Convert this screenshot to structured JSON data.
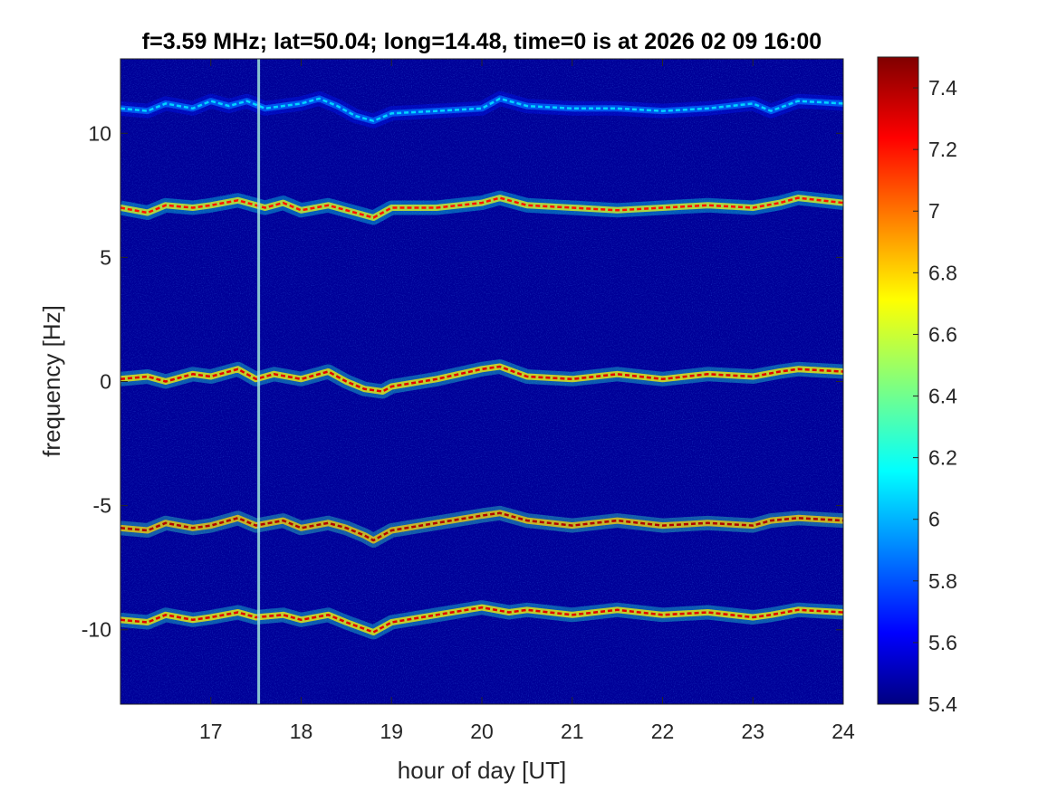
{
  "chart_data": {
    "type": "heatmap",
    "title": "f=3.59 MHz;  lat=50.04; long=14.48, time=0 is at 2026 02 09 16:00",
    "xlabel": "hour of day [UT]",
    "ylabel": "frequency [Hz]",
    "xlim": [
      16,
      24
    ],
    "ylim": [
      -13,
      13
    ],
    "xticks": [
      17,
      18,
      19,
      20,
      21,
      22,
      23,
      24
    ],
    "yticks": [
      -10,
      -5,
      0,
      5,
      10
    ],
    "colorbar": {
      "clim": [
        5.4,
        7.5
      ],
      "ticks": [
        5.4,
        5.6,
        5.8,
        6,
        6.2,
        6.4,
        6.6,
        6.8,
        7,
        7.2,
        7.4
      ],
      "colormap": "jet"
    },
    "background_level": 5.45,
    "vertical_interference_hour": 17.53,
    "traces": [
      {
        "x": [
          16.0,
          16.3,
          16.5,
          16.8,
          17.0,
          17.2,
          17.4,
          17.6,
          17.8,
          18.0,
          18.2,
          18.4,
          18.6,
          18.8,
          19.0,
          19.5,
          20.0,
          20.2,
          20.5,
          21.0,
          21.5,
          22.0,
          22.5,
          23.0,
          23.2,
          23.5,
          24.0
        ],
        "y": [
          11.0,
          10.9,
          11.2,
          11.0,
          11.3,
          11.1,
          11.3,
          11.0,
          11.1,
          11.2,
          11.4,
          11.1,
          10.7,
          10.5,
          10.8,
          10.9,
          11.0,
          11.4,
          11.1,
          11.0,
          11.0,
          10.9,
          11.0,
          11.2,
          10.9,
          11.3,
          11.2
        ],
        "level": 6.1
      },
      {
        "x": [
          16.0,
          16.3,
          16.5,
          16.8,
          17.0,
          17.3,
          17.6,
          17.8,
          18.0,
          18.3,
          18.6,
          18.8,
          19.0,
          19.5,
          20.0,
          20.2,
          20.5,
          21.0,
          21.5,
          22.0,
          22.5,
          23.0,
          23.3,
          23.5,
          24.0
        ],
        "y": [
          7.0,
          6.8,
          7.1,
          7.0,
          7.1,
          7.3,
          7.0,
          7.2,
          6.9,
          7.1,
          6.8,
          6.6,
          7.0,
          7.0,
          7.2,
          7.4,
          7.1,
          7.0,
          6.9,
          7.0,
          7.1,
          7.0,
          7.2,
          7.4,
          7.2
        ],
        "level": 7.2
      },
      {
        "x": [
          16.0,
          16.3,
          16.5,
          16.8,
          17.0,
          17.3,
          17.5,
          17.7,
          18.0,
          18.3,
          18.5,
          18.7,
          18.9,
          19.0,
          19.5,
          20.0,
          20.2,
          20.5,
          21.0,
          21.5,
          22.0,
          22.5,
          23.0,
          23.3,
          23.5,
          24.0
        ],
        "y": [
          0.1,
          0.2,
          0.0,
          0.3,
          0.2,
          0.5,
          0.1,
          0.3,
          0.1,
          0.4,
          0.0,
          -0.3,
          -0.4,
          -0.2,
          0.1,
          0.5,
          0.6,
          0.2,
          0.1,
          0.3,
          0.1,
          0.3,
          0.2,
          0.4,
          0.5,
          0.4
        ],
        "level": 7.3
      },
      {
        "x": [
          16.0,
          16.3,
          16.5,
          16.8,
          17.0,
          17.3,
          17.5,
          17.8,
          18.0,
          18.3,
          18.5,
          18.7,
          18.8,
          19.0,
          19.5,
          20.0,
          20.2,
          20.5,
          21.0,
          21.5,
          22.0,
          22.5,
          23.0,
          23.2,
          23.5,
          24.0
        ],
        "y": [
          -5.9,
          -6.0,
          -5.7,
          -5.9,
          -5.8,
          -5.5,
          -5.8,
          -5.6,
          -5.9,
          -5.7,
          -5.9,
          -6.2,
          -6.4,
          -6.0,
          -5.7,
          -5.4,
          -5.3,
          -5.6,
          -5.8,
          -5.6,
          -5.8,
          -5.7,
          -5.8,
          -5.6,
          -5.5,
          -5.6
        ],
        "level": 7.4
      },
      {
        "x": [
          16.0,
          16.3,
          16.5,
          16.8,
          17.0,
          17.3,
          17.5,
          17.8,
          18.0,
          18.3,
          18.5,
          18.8,
          19.0,
          19.5,
          20.0,
          20.3,
          20.5,
          21.0,
          21.5,
          22.0,
          22.5,
          23.0,
          23.2,
          23.5,
          24.0
        ],
        "y": [
          -9.6,
          -9.7,
          -9.4,
          -9.6,
          -9.5,
          -9.3,
          -9.5,
          -9.4,
          -9.6,
          -9.4,
          -9.7,
          -10.1,
          -9.7,
          -9.4,
          -9.1,
          -9.3,
          -9.2,
          -9.4,
          -9.2,
          -9.4,
          -9.3,
          -9.5,
          -9.4,
          -9.2,
          -9.3
        ],
        "level": 7.3
      }
    ]
  }
}
